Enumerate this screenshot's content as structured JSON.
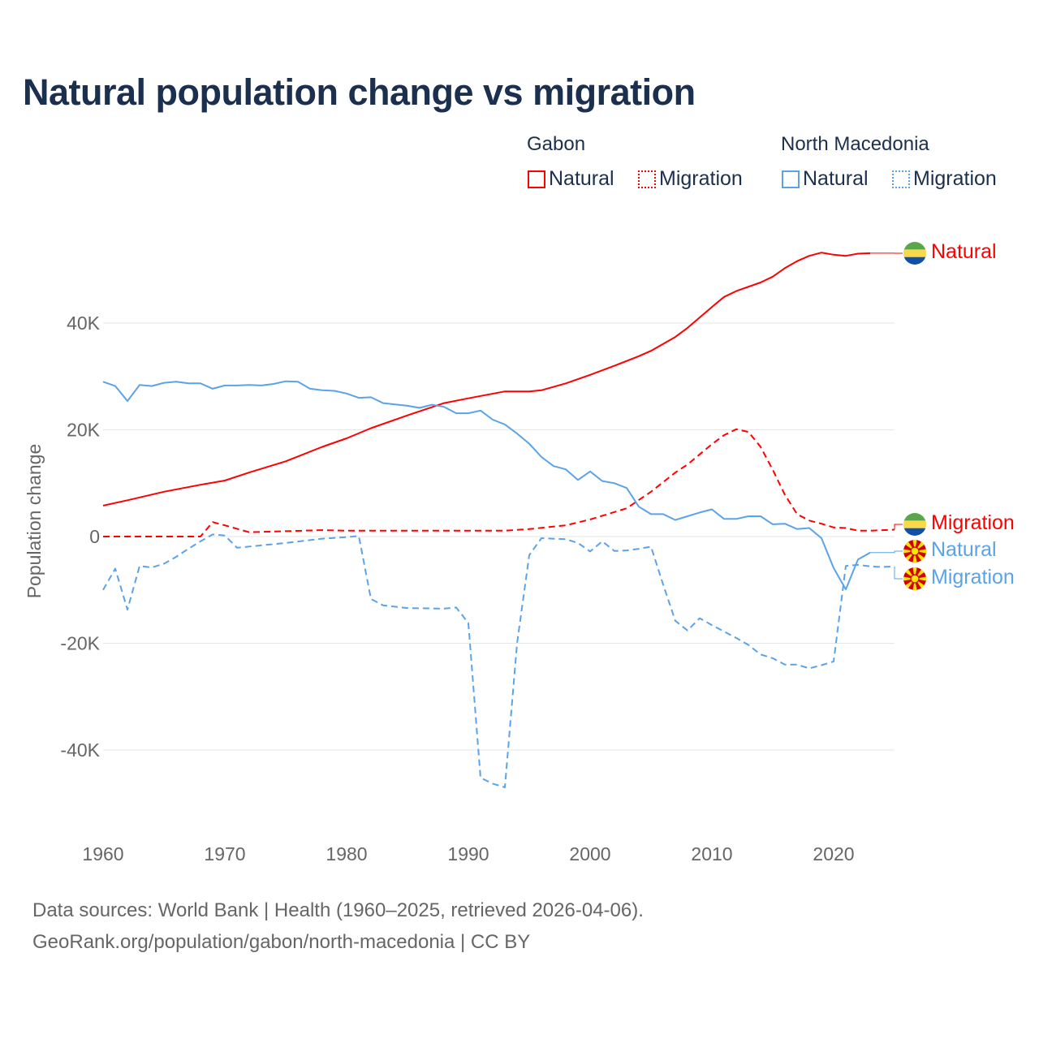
{
  "title": "Natural population change vs migration",
  "legend": {
    "groups": [
      {
        "name": "Gabon",
        "items": [
          {
            "label": "Natural",
            "style": "solid",
            "color": "#ff0000"
          },
          {
            "label": "Migration",
            "style": "dotted",
            "color": "#ff0000"
          }
        ]
      },
      {
        "name": "North Macedonia",
        "items": [
          {
            "label": "Natural",
            "style": "solid",
            "color": "#5ba3e8"
          },
          {
            "label": "Migration",
            "style": "dotted",
            "color": "#5ba3e8"
          }
        ]
      }
    ]
  },
  "footer": {
    "line1": "Data sources: World Bank | Health (1960–2025, retrieved 2026-04-06).",
    "line2": "GeoRank.org/population/gabon/north-macedonia | CC BY"
  },
  "chart_data": {
    "type": "line",
    "title": "Natural population change vs migration",
    "xlabel": "",
    "ylabel": "Population change",
    "xlim": [
      1960,
      2025
    ],
    "ylim": [
      -50000,
      60000
    ],
    "x_ticks": [
      "1960",
      "1970",
      "1980",
      "1990",
      "2000",
      "2010",
      "2020"
    ],
    "y_ticks": [
      {
        "v": 40000,
        "label": "40K"
      },
      {
        "v": 20000,
        "label": "20K"
      },
      {
        "v": 0,
        "label": "0"
      },
      {
        "v": -20000,
        "label": "-20K"
      },
      {
        "v": -40000,
        "label": "-40K"
      }
    ],
    "series": [
      {
        "name": "Gabon Natural",
        "end_label": "Natural",
        "country": "Gabon",
        "color": "#ff0000",
        "dash": false,
        "points": [
          [
            1960,
            5800
          ],
          [
            1962,
            6800
          ],
          [
            1965,
            8400
          ],
          [
            1968,
            9700
          ],
          [
            1970,
            10500
          ],
          [
            1972,
            12000
          ],
          [
            1975,
            14100
          ],
          [
            1978,
            16800
          ],
          [
            1980,
            18400
          ],
          [
            1982,
            20300
          ],
          [
            1985,
            22700
          ],
          [
            1988,
            25000
          ],
          [
            1990,
            25900
          ],
          [
            1993,
            27200
          ],
          [
            1995,
            27200
          ],
          [
            1996,
            27400
          ],
          [
            1998,
            28700
          ],
          [
            2000,
            30300
          ],
          [
            2002,
            32000
          ],
          [
            2004,
            33800
          ],
          [
            2005,
            34800
          ],
          [
            2007,
            37400
          ],
          [
            2008,
            39100
          ],
          [
            2010,
            43000
          ],
          [
            2011,
            44900
          ],
          [
            2012,
            46000
          ],
          [
            2014,
            47600
          ],
          [
            2015,
            48700
          ],
          [
            2016,
            50300
          ],
          [
            2017,
            51600
          ],
          [
            2018,
            52600
          ],
          [
            2019,
            53200
          ],
          [
            2020,
            52800
          ],
          [
            2021,
            52600
          ],
          [
            2022,
            53000
          ],
          [
            2023,
            53100
          ]
        ]
      },
      {
        "name": "Gabon Migration",
        "end_label": "Migration",
        "country": "Gabon",
        "color": "#ff0000",
        "dash": true,
        "points": [
          [
            1960,
            0
          ],
          [
            1968,
            0
          ],
          [
            1969,
            2700
          ],
          [
            1970,
            2100
          ],
          [
            1972,
            800
          ],
          [
            1975,
            1000
          ],
          [
            1978,
            1200
          ],
          [
            1980,
            1100
          ],
          [
            1993,
            1100
          ],
          [
            1995,
            1400
          ],
          [
            1998,
            2100
          ],
          [
            2000,
            3200
          ],
          [
            2003,
            5300
          ],
          [
            2005,
            8400
          ],
          [
            2007,
            12000
          ],
          [
            2008,
            13500
          ],
          [
            2010,
            17300
          ],
          [
            2011,
            19000
          ],
          [
            2012,
            20100
          ],
          [
            2013,
            19600
          ],
          [
            2014,
            16800
          ],
          [
            2015,
            12500
          ],
          [
            2016,
            7800
          ],
          [
            2017,
            4200
          ],
          [
            2018,
            3000
          ],
          [
            2019,
            2400
          ],
          [
            2020,
            1700
          ],
          [
            2021,
            1600
          ],
          [
            2022,
            1100
          ],
          [
            2023,
            1100
          ],
          [
            2024,
            1200
          ],
          [
            2025,
            1300
          ]
        ]
      },
      {
        "name": "North Macedonia Natural",
        "end_label": "Natural",
        "country": "North Macedonia",
        "color": "#5ba3e8",
        "dash": false,
        "points": [
          [
            1960,
            29000
          ],
          [
            1961,
            28200
          ],
          [
            1962,
            25400
          ],
          [
            1963,
            28400
          ],
          [
            1964,
            28200
          ],
          [
            1965,
            28800
          ],
          [
            1966,
            29000
          ],
          [
            1967,
            28700
          ],
          [
            1968,
            28700
          ],
          [
            1969,
            27700
          ],
          [
            1970,
            28300
          ],
          [
            1971,
            28300
          ],
          [
            1972,
            28400
          ],
          [
            1973,
            28300
          ],
          [
            1974,
            28600
          ],
          [
            1975,
            29100
          ],
          [
            1976,
            29000
          ],
          [
            1977,
            27700
          ],
          [
            1978,
            27400
          ],
          [
            1979,
            27300
          ],
          [
            1980,
            26800
          ],
          [
            1981,
            26000
          ],
          [
            1982,
            26100
          ],
          [
            1983,
            25000
          ],
          [
            1985,
            24500
          ],
          [
            1986,
            24100
          ],
          [
            1987,
            24700
          ],
          [
            1988,
            24300
          ],
          [
            1989,
            23100
          ],
          [
            1990,
            23100
          ],
          [
            1991,
            23600
          ],
          [
            1992,
            21900
          ],
          [
            1993,
            21000
          ],
          [
            1994,
            19300
          ],
          [
            1995,
            17400
          ],
          [
            1996,
            14900
          ],
          [
            1997,
            13200
          ],
          [
            1998,
            12600
          ],
          [
            1999,
            10600
          ],
          [
            2000,
            12200
          ],
          [
            2001,
            10400
          ],
          [
            2002,
            10000
          ],
          [
            2003,
            9100
          ],
          [
            2004,
            5600
          ],
          [
            2005,
            4200
          ],
          [
            2006,
            4200
          ],
          [
            2007,
            3100
          ],
          [
            2008,
            3800
          ],
          [
            2009,
            4500
          ],
          [
            2010,
            5100
          ],
          [
            2011,
            3300
          ],
          [
            2012,
            3300
          ],
          [
            2013,
            3800
          ],
          [
            2014,
            3800
          ],
          [
            2015,
            2300
          ],
          [
            2016,
            2400
          ],
          [
            2017,
            1400
          ],
          [
            2018,
            1600
          ],
          [
            2019,
            -300
          ],
          [
            2020,
            -5900
          ],
          [
            2021,
            -9900
          ],
          [
            2022,
            -4300
          ],
          [
            2023,
            -3000
          ]
        ]
      },
      {
        "name": "North Macedonia Migration",
        "end_label": "Migration",
        "country": "North Macedonia",
        "color": "#5ba3e8",
        "dash": true,
        "points": [
          [
            1960,
            -10000
          ],
          [
            1961,
            -6000
          ],
          [
            1962,
            -13700
          ],
          [
            1963,
            -5500
          ],
          [
            1964,
            -5800
          ],
          [
            1965,
            -5100
          ],
          [
            1966,
            -3800
          ],
          [
            1967,
            -2300
          ],
          [
            1968,
            -900
          ],
          [
            1969,
            400
          ],
          [
            1970,
            200
          ],
          [
            1971,
            -2100
          ],
          [
            1975,
            -1200
          ],
          [
            1978,
            -400
          ],
          [
            1980,
            -100
          ],
          [
            1981,
            100
          ],
          [
            1982,
            -11700
          ],
          [
            1983,
            -12900
          ],
          [
            1985,
            -13400
          ],
          [
            1988,
            -13500
          ],
          [
            1989,
            -13300
          ],
          [
            1990,
            -16200
          ],
          [
            1991,
            -45200
          ],
          [
            1992,
            -46300
          ],
          [
            1993,
            -47000
          ],
          [
            1994,
            -20000
          ],
          [
            1995,
            -3500
          ],
          [
            1996,
            -300
          ],
          [
            1998,
            -500
          ],
          [
            1999,
            -1200
          ],
          [
            2000,
            -2800
          ],
          [
            2001,
            -900
          ],
          [
            2002,
            -2700
          ],
          [
            2003,
            -2600
          ],
          [
            2004,
            -2300
          ],
          [
            2005,
            -1900
          ],
          [
            2006,
            -9000
          ],
          [
            2007,
            -15800
          ],
          [
            2008,
            -17600
          ],
          [
            2009,
            -15300
          ],
          [
            2010,
            -16600
          ],
          [
            2011,
            -17800
          ],
          [
            2012,
            -19000
          ],
          [
            2013,
            -20300
          ],
          [
            2014,
            -22100
          ],
          [
            2015,
            -22800
          ],
          [
            2016,
            -24000
          ],
          [
            2017,
            -24000
          ],
          [
            2018,
            -24700
          ],
          [
            2019,
            -24100
          ],
          [
            2020,
            -23400
          ],
          [
            2021,
            -5500
          ],
          [
            2022,
            -5300
          ],
          [
            2023,
            -5600
          ],
          [
            2024,
            -5700
          ],
          [
            2025,
            -5600
          ]
        ]
      }
    ]
  }
}
